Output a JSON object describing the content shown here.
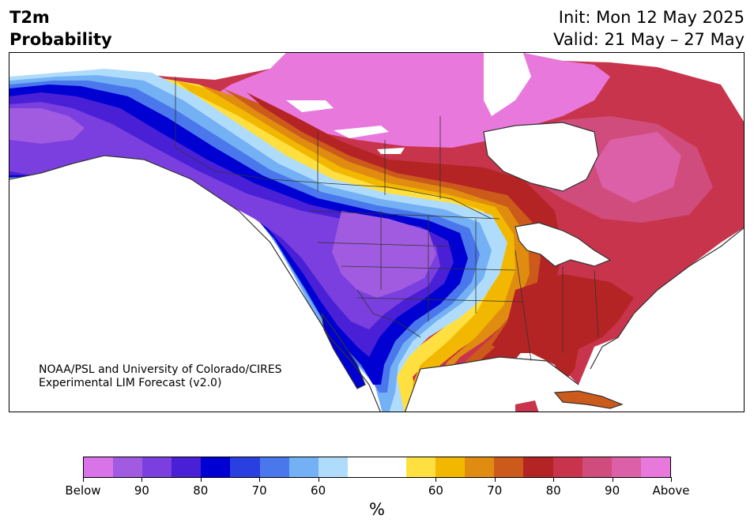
{
  "title": {
    "variable": "T2m",
    "subtitle": "Probability",
    "init": "Init: Mon 12 May 2025",
    "valid": "Valid: 21 May – 27 May"
  },
  "credit": {
    "line1": "NOAA/PSL and University of Colorado/CIRES",
    "line2": "Experimental LIM Forecast (v2.0)"
  },
  "colorbar": {
    "colors": [
      "#d874e8",
      "#a05be0",
      "#7a3fde",
      "#4a20d6",
      "#0000d2",
      "#2a3fe0",
      "#4a78ec",
      "#74b0f4",
      "#b0dcfc",
      "#ffffff",
      "#ffffff",
      "#ffe040",
      "#f2b800",
      "#e08c10",
      "#cc5a1a",
      "#b42424",
      "#c8344c",
      "#d04c7c",
      "#dc60a8",
      "#e878dc"
    ],
    "tick_labels": [
      "Below",
      "90",
      "80",
      "70",
      "60",
      "60",
      "70",
      "80",
      "90",
      "Above"
    ],
    "unit": "%"
  },
  "map": {
    "below_colors": {
      "b100": "#d874e8",
      "b90": "#a05be0",
      "b85": "#7a3fde",
      "b80": "#4a20d6",
      "b75": "#0000d2",
      "b70": "#2a3fe0",
      "b65": "#4a78ec",
      "b60": "#74b0f4",
      "b55": "#b0dcfc"
    },
    "above_colors": {
      "a55": "#ffe040",
      "a60": "#f2b800",
      "a65": "#e08c10",
      "a70": "#cc5a1a",
      "a75": "#b42424",
      "a80": "#c8344c",
      "a85": "#d04c7c",
      "a90": "#dc60a8",
      "a95": "#e878dc"
    },
    "water": "#ffffff",
    "border": "#333333"
  }
}
